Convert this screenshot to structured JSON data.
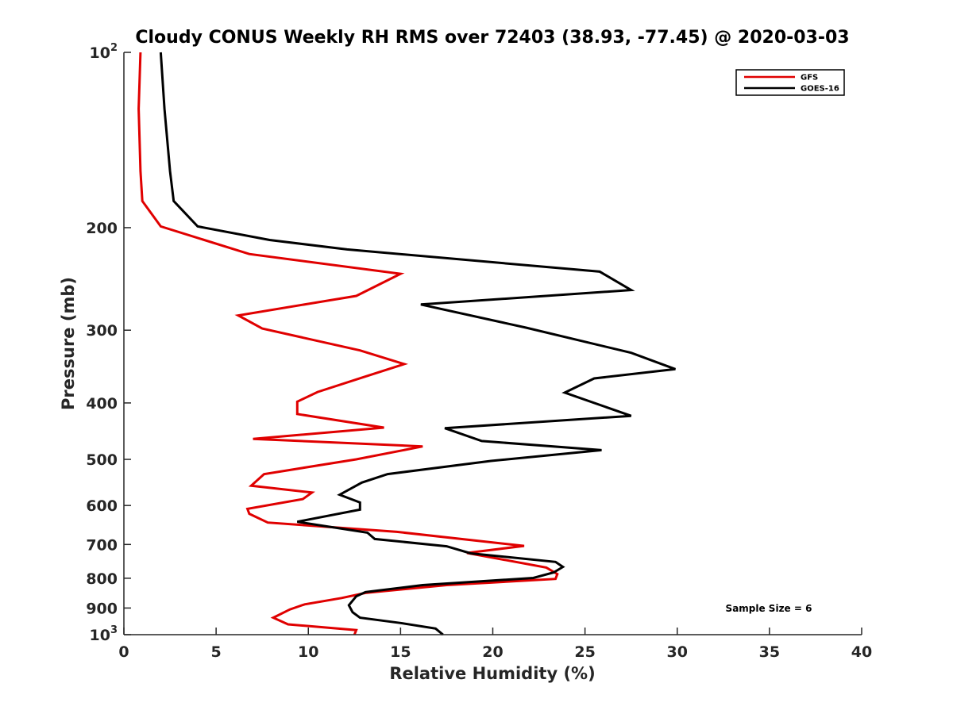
{
  "chart_data": {
    "type": "line",
    "title": "Cloudy CONUS Weekly RH RMS over 72403 (38.93, -77.45) @ 2020-03-03",
    "xlabel": "Relative Humidity (%)",
    "ylabel": "Pressure (mb)",
    "xlim": [
      0,
      40
    ],
    "ylim": [
      100,
      1000
    ],
    "y_scale": "log",
    "y_reversed": true,
    "grid": false,
    "legend_position": "top-right",
    "x_ticks": [
      0,
      5,
      10,
      15,
      20,
      25,
      30,
      35,
      40
    ],
    "y_ticks": [
      {
        "value": 100,
        "label": "10",
        "sup": "2"
      },
      {
        "value": 200,
        "label": "200",
        "sup": ""
      },
      {
        "value": 300,
        "label": "300",
        "sup": ""
      },
      {
        "value": 400,
        "label": "400",
        "sup": ""
      },
      {
        "value": 500,
        "label": "500",
        "sup": ""
      },
      {
        "value": 600,
        "label": "600",
        "sup": ""
      },
      {
        "value": 700,
        "label": "700",
        "sup": ""
      },
      {
        "value": 800,
        "label": "800",
        "sup": ""
      },
      {
        "value": 900,
        "label": "900",
        "sup": ""
      },
      {
        "value": 1000,
        "label": "10",
        "sup": "3"
      }
    ],
    "annotation": "Sample Size = 6",
    "series": [
      {
        "name": "GFS",
        "color": "#e00000",
        "points": [
          [
            0.9,
            100
          ],
          [
            0.8,
            125
          ],
          [
            0.9,
            160
          ],
          [
            1.0,
            180
          ],
          [
            2.0,
            199
          ],
          [
            6.8,
            222
          ],
          [
            15.0,
            240
          ],
          [
            12.6,
            262
          ],
          [
            6.2,
            283
          ],
          [
            7.5,
            298
          ],
          [
            12.8,
            325
          ],
          [
            15.2,
            343
          ],
          [
            12.9,
            362
          ],
          [
            10.5,
            383
          ],
          [
            9.4,
            398
          ],
          [
            9.4,
            418
          ],
          [
            14.1,
            441
          ],
          [
            7.0,
            461
          ],
          [
            16.2,
            475
          ],
          [
            12.6,
            500
          ],
          [
            7.6,
            530
          ],
          [
            6.9,
            555
          ],
          [
            10.2,
            570
          ],
          [
            9.7,
            585
          ],
          [
            6.7,
            608
          ],
          [
            6.8,
            620
          ],
          [
            7.8,
            642
          ],
          [
            14.8,
            666
          ],
          [
            21.7,
            704
          ],
          [
            18.6,
            724
          ],
          [
            22.9,
            767
          ],
          [
            23.5,
            787
          ],
          [
            23.4,
            802
          ],
          [
            17.5,
            822
          ],
          [
            13.1,
            848
          ],
          [
            11.8,
            865
          ],
          [
            9.8,
            887
          ],
          [
            9.0,
            905
          ],
          [
            8.1,
            935
          ],
          [
            8.9,
            960
          ],
          [
            12.6,
            982
          ],
          [
            12.5,
            1000
          ]
        ]
      },
      {
        "name": "GOES-16",
        "color": "#000000",
        "points": [
          [
            2.0,
            100
          ],
          [
            2.2,
            125
          ],
          [
            2.5,
            160
          ],
          [
            2.7,
            180
          ],
          [
            4.0,
            199
          ],
          [
            7.9,
            210
          ],
          [
            12.1,
            218
          ],
          [
            25.8,
            238
          ],
          [
            27.5,
            256
          ],
          [
            16.1,
            271
          ],
          [
            21.8,
            297
          ],
          [
            27.5,
            328
          ],
          [
            29.9,
            350
          ],
          [
            25.5,
            363
          ],
          [
            23.9,
            384
          ],
          [
            27.5,
            421
          ],
          [
            17.4,
            442
          ],
          [
            19.4,
            465
          ],
          [
            25.9,
            482
          ],
          [
            19.9,
            503
          ],
          [
            14.3,
            530
          ],
          [
            12.9,
            548
          ],
          [
            11.7,
            575
          ],
          [
            12.8,
            593
          ],
          [
            12.8,
            610
          ],
          [
            9.4,
            640
          ],
          [
            13.2,
            668
          ],
          [
            13.6,
            685
          ],
          [
            17.5,
            705
          ],
          [
            18.8,
            725
          ],
          [
            23.4,
            750
          ],
          [
            23.8,
            765
          ],
          [
            23.3,
            782
          ],
          [
            22.2,
            799
          ],
          [
            16.2,
            822
          ],
          [
            13.1,
            845
          ],
          [
            12.6,
            859
          ],
          [
            12.2,
            890
          ],
          [
            12.4,
            915
          ],
          [
            12.8,
            935
          ],
          [
            15.0,
            955
          ],
          [
            16.9,
            976
          ],
          [
            17.3,
            1000
          ]
        ]
      }
    ]
  }
}
